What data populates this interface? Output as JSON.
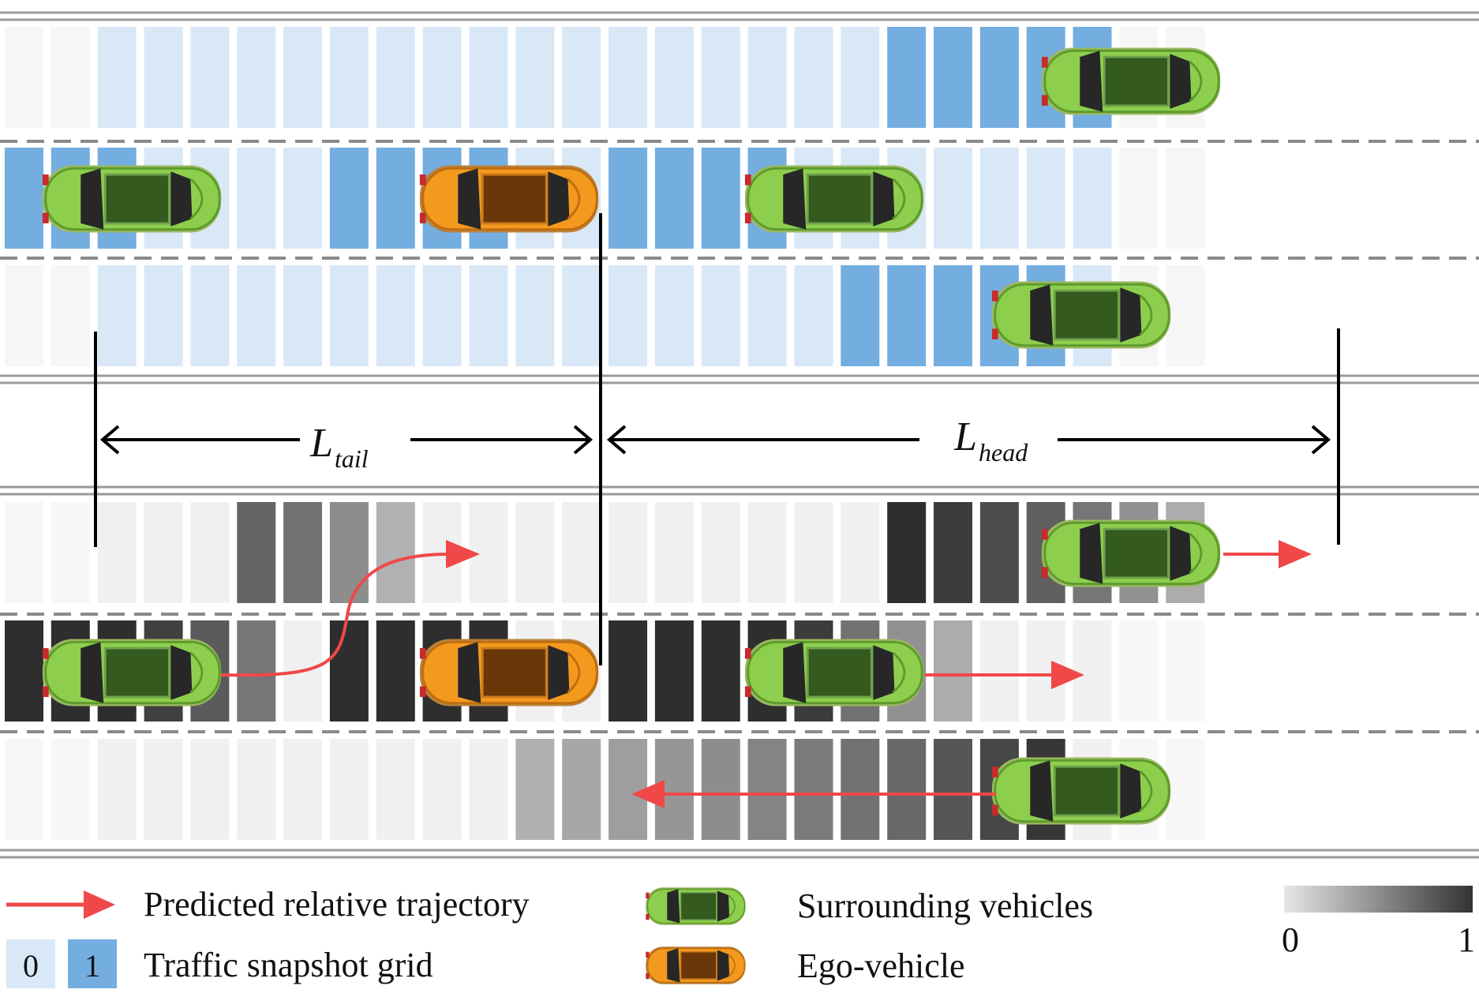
{
  "labels": {
    "l_tail_main": "L",
    "l_tail_sub": "tail",
    "l_head_main": "L",
    "l_head_sub": "head"
  },
  "legend": {
    "trajectory": "Predicted relative trajectory",
    "grid": "Traffic snapshot grid",
    "grid_value_0": "0",
    "grid_value_1": "1",
    "surrounding": "Surrounding vehicles",
    "ego": "Ego-vehicle",
    "scale_min": "0",
    "scale_max": "1"
  },
  "colors": {
    "grid_empty": "#d9e8f7",
    "grid_occupied": "#74aee0",
    "trajectory": "#f04848",
    "surrounding_vehicle": "#8dcf4d",
    "ego_vehicle": "#f39a1e",
    "lane_marking": "#9a9a9a"
  },
  "occupancy_grid": {
    "lanes": [
      [
        0,
        0,
        0,
        0,
        0,
        0,
        0,
        0,
        0,
        0,
        0,
        0,
        0,
        0,
        0,
        0,
        0,
        0,
        0,
        1,
        1,
        1,
        1,
        1,
        0,
        0
      ],
      [
        1,
        1,
        1,
        0,
        0,
        0,
        0,
        1,
        1,
        1,
        1,
        0,
        0,
        1,
        1,
        1,
        1,
        0,
        0,
        0,
        0,
        0,
        0,
        0,
        0,
        0
      ],
      [
        0,
        0,
        0,
        0,
        0,
        0,
        0,
        0,
        0,
        0,
        0,
        0,
        0,
        0,
        0,
        0,
        0,
        0,
        1,
        1,
        1,
        1,
        1,
        0,
        0,
        0
      ]
    ],
    "vehicles": [
      {
        "type": "surrounding",
        "lane": 1
      },
      {
        "type": "surrounding",
        "lane": 2
      },
      {
        "type": "ego",
        "lane": 2
      },
      {
        "type": "surrounding",
        "lane": 2
      },
      {
        "type": "surrounding",
        "lane": 3
      }
    ]
  },
  "predicted_grid": {
    "lanes": [
      [
        0,
        0,
        0,
        0,
        0,
        0.7,
        0.62,
        0.47,
        0.27,
        0,
        0,
        0,
        0,
        0,
        0,
        0,
        0,
        0,
        0,
        1,
        0.92,
        0.83,
        0.72,
        0.6,
        0.45,
        0.3
      ],
      [
        1,
        1,
        1,
        0.9,
        0.75,
        0.6,
        0,
        1,
        1,
        1,
        1,
        0,
        0,
        1,
        1,
        1,
        1,
        0.92,
        0.62,
        0.45,
        0.3,
        0,
        0,
        0,
        0,
        0
      ],
      [
        0,
        0,
        0,
        0,
        0,
        0,
        0,
        0,
        0,
        0,
        0,
        0.28,
        0.33,
        0.38,
        0.42,
        0.47,
        0.52,
        0.57,
        0.62,
        0.68,
        0.78,
        0.86,
        0.95,
        0,
        0,
        0
      ]
    ]
  }
}
